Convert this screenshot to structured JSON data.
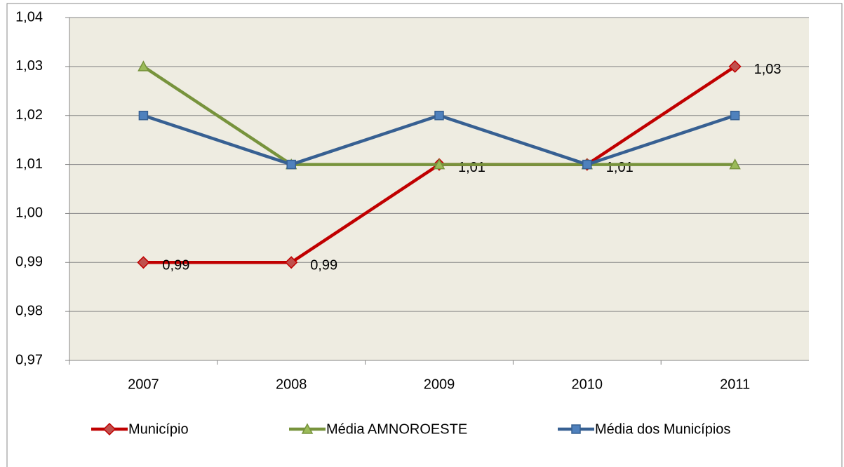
{
  "chart_data": {
    "type": "line",
    "categories": [
      "2007",
      "2008",
      "2009",
      "2010",
      "2011"
    ],
    "ylim": [
      0.97,
      1.04
    ],
    "yticks": [
      {
        "value": 0.97,
        "label": "0,97"
      },
      {
        "value": 0.98,
        "label": "0,98"
      },
      {
        "value": 0.99,
        "label": "0,99"
      },
      {
        "value": 1.0,
        "label": "1,00"
      },
      {
        "value": 1.01,
        "label": "1,01"
      },
      {
        "value": 1.02,
        "label": "1,02"
      },
      {
        "value": 1.03,
        "label": "1,03"
      },
      {
        "value": 1.04,
        "label": "1,04"
      }
    ],
    "grid": true,
    "legend": "bottom",
    "series": [
      {
        "name": "Município",
        "color": "#c00000",
        "marker_color": "#c0504d",
        "marker": "diamond",
        "values": [
          0.99,
          0.99,
          1.01,
          1.01,
          1.03
        ],
        "value_labels": [
          "0,99",
          "0,99",
          "1,01",
          "1,01",
          "1,03"
        ]
      },
      {
        "name": "Média AMNOROESTE",
        "color": "#77933c",
        "marker_color": "#9bbb59",
        "marker": "triangle",
        "values": [
          1.03,
          1.01,
          1.01,
          1.01,
          1.01
        ]
      },
      {
        "name": "Média dos Municípios",
        "color": "#376092",
        "marker_color": "#4f81bd",
        "marker": "square",
        "values": [
          1.02,
          1.01,
          1.02,
          1.01,
          1.02
        ]
      }
    ]
  }
}
